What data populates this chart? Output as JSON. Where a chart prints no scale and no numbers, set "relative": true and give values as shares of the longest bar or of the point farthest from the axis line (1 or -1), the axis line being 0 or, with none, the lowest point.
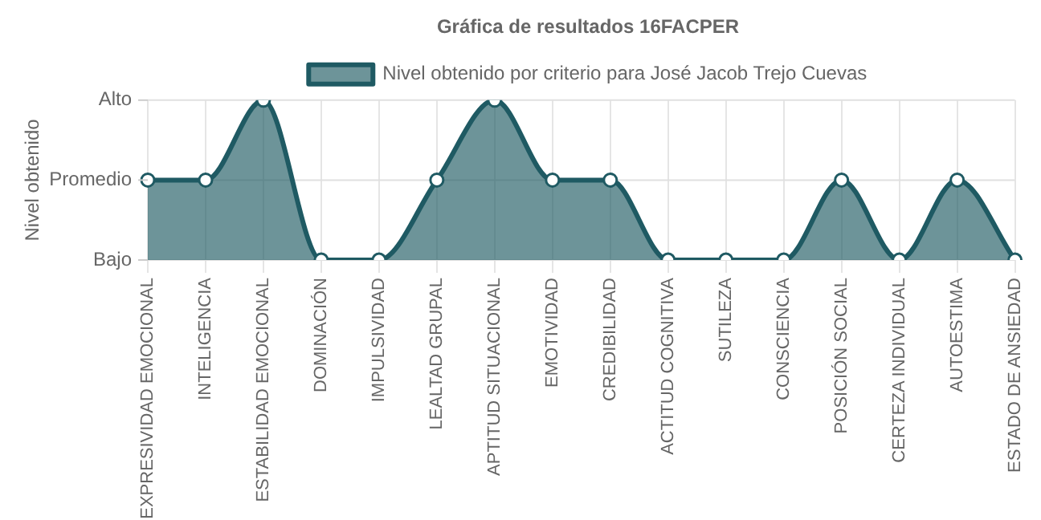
{
  "chart_data": {
    "type": "area",
    "title": "Gráfica de resultados 16FACPER",
    "ylabel": "Nivel obtenido",
    "categories": [
      "EXPRESIVIDAD EMOCIONAL",
      "INTELIGENCIA",
      "ESTABILIDAD EMOCIONAL",
      "DOMINACIÓN",
      "IMPULSIVIDAD",
      "LEALTAD GRUPAL",
      "APTITUD SITUACIONAL",
      "EMOTIVIDAD",
      "CREDIBILIDAD",
      "ACTITUD COGNITIVA",
      "SUTILEZA",
      "CONSCIENCIA",
      "POSICIÓN SOCIAL",
      "CERTEZA INDIVIDUAL",
      "AUTOESTIMA",
      "ESTADO DE ANSIEDAD"
    ],
    "series": [
      {
        "name": "Nivel obtenido por criterio para José Jacob Trejo Cuevas",
        "color": "#1f5a63",
        "values": [
          0.5,
          0.5,
          1,
          0,
          0,
          0.5,
          1,
          0.5,
          0.5,
          0,
          0,
          0,
          0.5,
          0,
          0.5,
          0
        ]
      }
    ],
    "relative": true,
    "ref_lines": [
      {
        "axis": "y",
        "value": 0.5,
        "color": "#e0e0e0"
      }
    ],
    "annotations": [
      "Bajo",
      "Promedio",
      "Alto"
    ],
    "grid": true,
    "legend": "top",
    "marker": "circle"
  }
}
